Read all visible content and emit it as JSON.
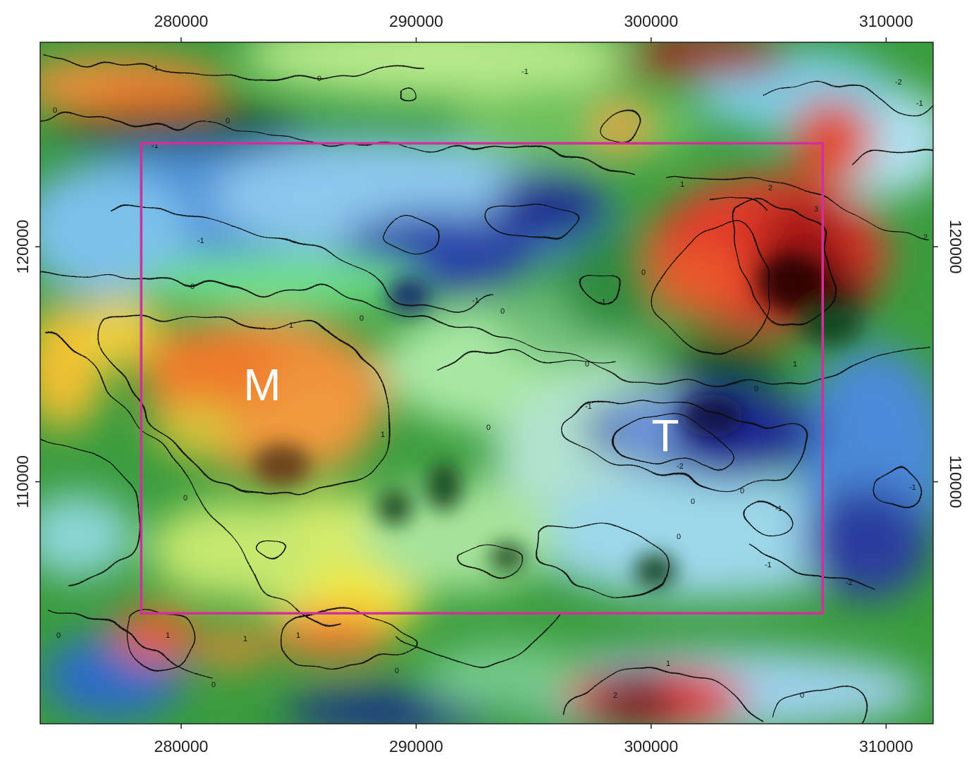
{
  "map": {
    "x_axis": {
      "range": [
        274000,
        312000
      ],
      "ticks": [
        {
          "value": 280000,
          "label": "280000"
        },
        {
          "value": 290000,
          "label": "290000"
        },
        {
          "value": 300000,
          "label": "300000"
        },
        {
          "value": 310000,
          "label": "310000"
        }
      ]
    },
    "y_axis": {
      "range": [
        99700,
        128700
      ],
      "ticks": [
        {
          "value": 120000,
          "label": "120000"
        },
        {
          "value": 110000,
          "label": "110000"
        }
      ]
    },
    "labels": {
      "m": "M",
      "t": "T"
    },
    "contour_values": [
      "-2",
      "-1",
      "0",
      "1",
      "2",
      "3"
    ],
    "study_area": {
      "x_min": 278300,
      "x_max": 307300,
      "y_min": 104400,
      "y_max": 124400,
      "color": "#d0309a"
    },
    "colors": {
      "dark_blue": "#1c2a8c",
      "blue": "#3f82d8",
      "light_blue": "#9fd5ee",
      "green": "#2e9a3c",
      "dark_green": "#0c4a1e",
      "yellow": "#f0e43a",
      "orange": "#ee8a34",
      "red": "#e02a28",
      "dark_red": "#5a0c0c"
    }
  }
}
